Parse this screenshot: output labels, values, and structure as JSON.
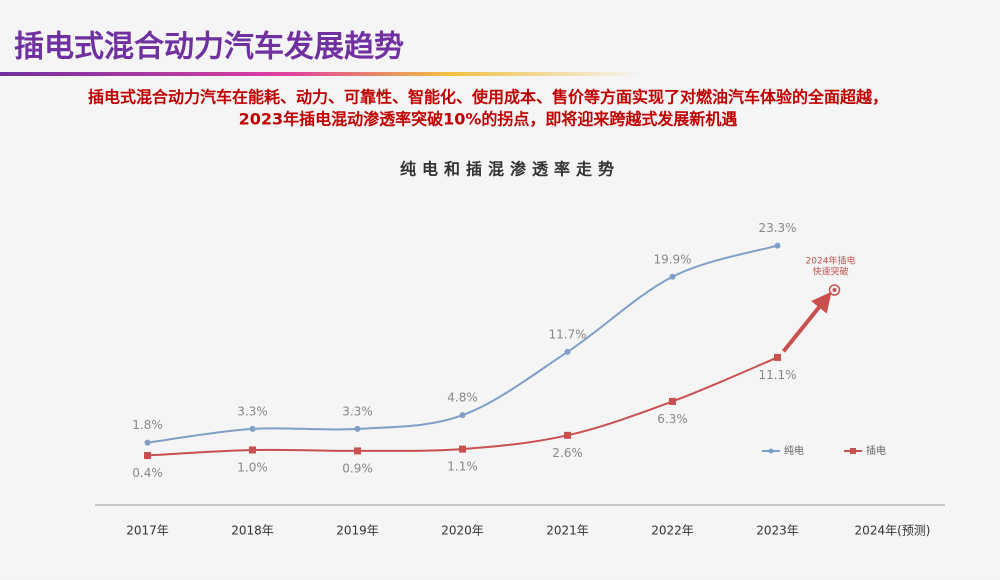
{
  "header": {
    "title": "插电式混合动力汽车发展趋势",
    "subtitle_lines": [
      "插电式混合动力汽车在能耗、动力、可靠性、智能化、使用成本、售价等方面实现了对燃油汽车体验的全面超越，",
      "2023年插电混动渗透率突破10%的拐点，即将迎来跨越式发展新机遇"
    ]
  },
  "chart_data": {
    "type": "line",
    "title": "纯电和插混渗透率走势",
    "categories": [
      "2017年",
      "2018年",
      "2019年",
      "2020年",
      "2021年",
      "2022年",
      "2023年",
      "2024年(预测)"
    ],
    "series": [
      {
        "name": "纯电",
        "color": "#7f9fc9",
        "marker": "circle",
        "values": [
          1.8,
          3.3,
          3.3,
          4.8,
          11.7,
          19.9,
          23.3,
          null
        ],
        "value_labels": [
          "1.8%",
          "3.3%",
          "3.3%",
          "4.8%",
          "11.7%",
          "19.9%",
          "23.3%",
          null
        ]
      },
      {
        "name": "插电",
        "color": "#c9504f",
        "marker": "square",
        "values": [
          0.4,
          1.0,
          0.9,
          1.1,
          2.6,
          6.3,
          11.1,
          null
        ],
        "value_labels": [
          "0.4%",
          "1.0%",
          "0.9%",
          "1.1%",
          "2.6%",
          "6.3%",
          "11.1%",
          null
        ]
      }
    ],
    "annotation_lines": [
      "2024年插电",
      "快速突破"
    ],
    "ylim": [
      -5,
      25
    ],
    "legend": "right"
  }
}
